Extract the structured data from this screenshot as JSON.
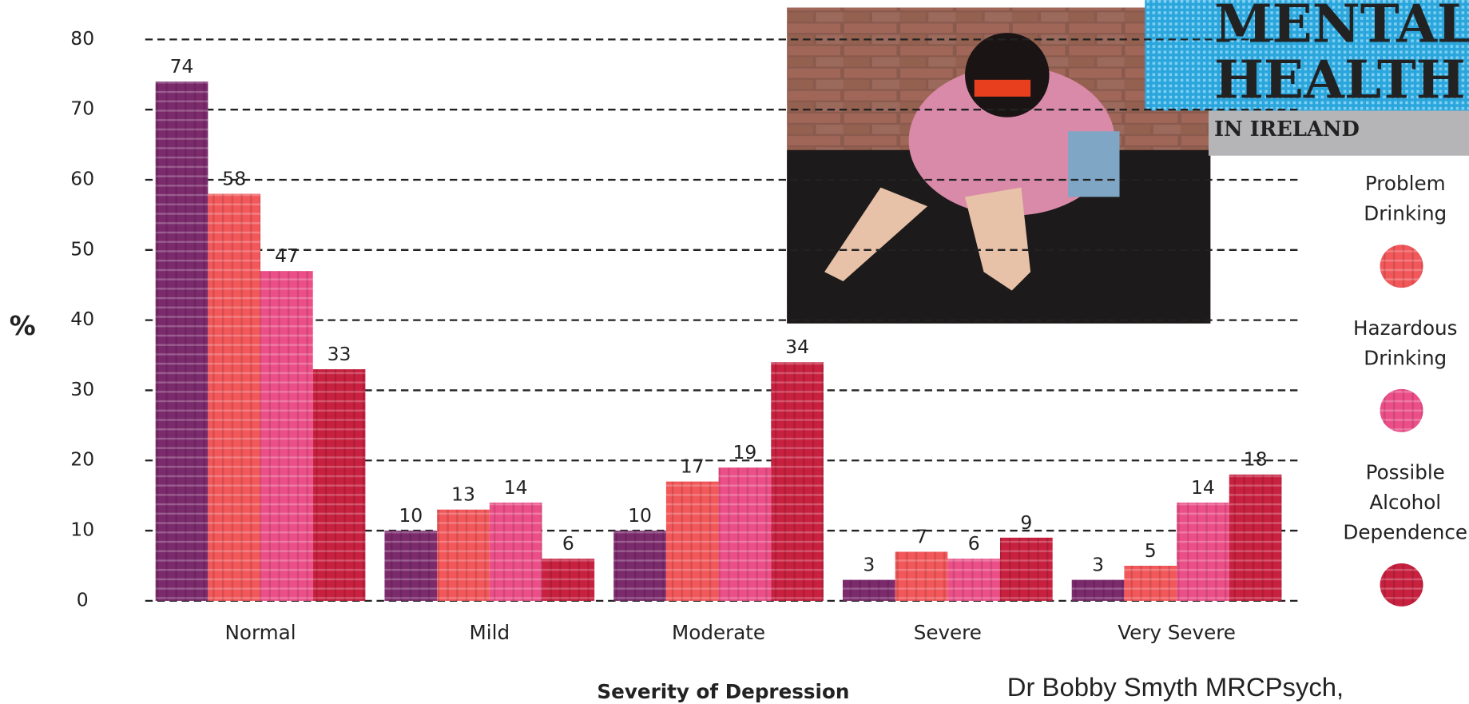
{
  "chart_data": {
    "type": "bar",
    "ylabel": "%",
    "xlabel": "Severity of Depression",
    "categories": [
      "Normal",
      "Mild",
      "Moderate",
      "Severe",
      "Very Severe"
    ],
    "series": [
      {
        "color": "#7b2a6c",
        "values": [
          74,
          10,
          10,
          3,
          3
        ]
      },
      {
        "name": "Problem Drinking",
        "color": "#f2575a",
        "values": [
          58,
          13,
          17,
          7,
          5
        ]
      },
      {
        "name": "Hazardous Drinking",
        "color": "#ec4f88",
        "values": [
          47,
          14,
          19,
          6,
          14
        ]
      },
      {
        "name": "Possible Alcohol Dependence",
        "color": "#c8203f",
        "values": [
          33,
          6,
          34,
          9,
          18
        ]
      }
    ],
    "ylim": [
      0,
      80
    ],
    "yticks": [
      0,
      10,
      20,
      30,
      40,
      50,
      60,
      70,
      80
    ],
    "grid": true,
    "legend": "right"
  },
  "logo": {
    "line1": "MENTAL",
    "line2": "HEALTH",
    "line3": "IN IRELAND"
  },
  "caption": "Dr Bobby Smyth MRCPsych,"
}
